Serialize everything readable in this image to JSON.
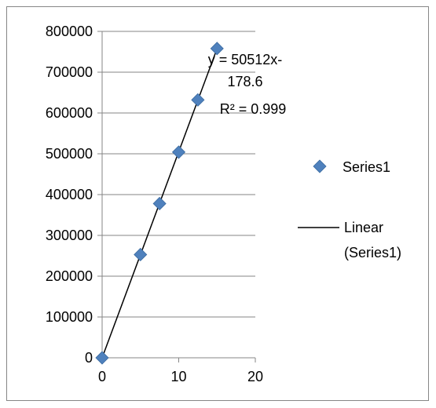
{
  "chart_data": {
    "type": "scatter",
    "title": "",
    "xlabel": "",
    "ylabel": "",
    "xlim": [
      0,
      20
    ],
    "ylim": [
      0,
      800000
    ],
    "x_ticks": [
      "0",
      "10",
      "20"
    ],
    "y_ticks": [
      "0",
      "100000",
      "200000",
      "300000",
      "400000",
      "500000",
      "600000",
      "700000",
      "800000"
    ],
    "grid": true,
    "legend_position": "right",
    "series": [
      {
        "name": "Series1",
        "marker": "diamond",
        "color": "#4F81BD",
        "x": [
          0,
          5,
          7.5,
          10,
          12.5,
          15
        ],
        "y": [
          0,
          253000,
          378000,
          504000,
          632000,
          758000
        ]
      }
    ],
    "trendline": {
      "name": "Linear (Series1)",
      "color": "#000000",
      "slope": 50512,
      "intercept": -178.6,
      "x_range": [
        0,
        15
      ],
      "equation_lines": [
        "y = 50512x-",
        "178.6"
      ],
      "r_squared_label": "R² = 0.999"
    },
    "legend": {
      "items": [
        {
          "label_lines": [
            "Series1"
          ]
        },
        {
          "label_lines": [
            "Linear",
            "(Series1)"
          ]
        }
      ]
    }
  }
}
